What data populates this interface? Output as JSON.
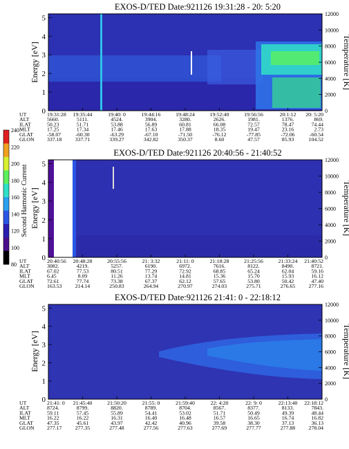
{
  "chart_data": [
    {
      "type": "heatmap",
      "title": "EXOS-D/TED   Date:921126  19:31:28 - 20: 5:20",
      "ylabel": "Energy [eV]",
      "y2label": "Temperature [K]",
      "ylim": [
        0,
        5.2
      ],
      "y2lim": [
        0,
        12000
      ],
      "yticks": [
        "0",
        "1",
        "2",
        "3",
        "4",
        "5"
      ],
      "y2ticks": [
        "0",
        "2000",
        "4000",
        "6000",
        "8000",
        "10000",
        "12000"
      ],
      "xticks": [
        "19:31:28",
        "19:35:44",
        "19:40: 0",
        "19:44:16",
        "19:48:24",
        "19:52:40",
        "19:56:56",
        "20:1:12",
        "20: 5:20"
      ],
      "ephemeris": [
        {
          "label": "UT",
          "values": [
            "19:31:28",
            "19:35:44",
            "19:40: 0",
            "19:44:16",
            "19:48:24",
            "19:52:40",
            "19:56:56",
            "20:1:12",
            "20: 5:20"
          ]
        },
        {
          "label": "ALT",
          "values": [
            "5660.",
            "5111.",
            "4524.",
            "3904.",
            "3280.",
            "2626.",
            "1981.",
            "1376.",
            "869."
          ]
        },
        {
          "label": "ILAT",
          "values": [
            "50.23",
            "51.71",
            "53.88",
            "56.89",
            "60.81",
            "66.08",
            "72.57",
            "78.47",
            "74.44"
          ]
        },
        {
          "label": "MLT",
          "values": [
            "17.25",
            "17.34",
            "17.46",
            "17.63",
            "17.88",
            "18.35",
            "19.47",
            "23.16",
            "2.73"
          ]
        },
        {
          "label": "GLAT",
          "values": [
            "-58.07",
            "-60.30",
            "-63.29",
            "-67.10",
            "-71.50",
            "-76.12",
            "-77.85",
            "-72.06",
            "-60.54"
          ]
        },
        {
          "label": "GLON",
          "values": [
            "337.18",
            "337.71",
            "339.27",
            "342.82",
            "350.37",
            "8.60",
            "47.57",
            "85.93",
            "104.52"
          ]
        }
      ]
    },
    {
      "type": "heatmap",
      "title": "EXOS-D/TED   Date:921126  20:40:56 - 21:40:52",
      "ylabel": "Energy [eV]",
      "y2label": "Temperature [K]",
      "ylim": [
        0,
        5.2
      ],
      "y2lim": [
        0,
        12000
      ],
      "yticks": [
        "0",
        "1",
        "2",
        "3",
        "4",
        "5"
      ],
      "y2ticks": [
        "0",
        "2000",
        "4000",
        "6000",
        "8000",
        "10000",
        "12000"
      ],
      "xticks": [
        "20:40:56",
        "20:48:28",
        "20:55:56",
        "21: 3:32",
        "21:11: 0",
        "21:18:28",
        "21:25:56",
        "21:33:24",
        "21:40:52"
      ],
      "ephemeris": [
        {
          "label": "UT",
          "values": [
            "20:40:56",
            "20:48:28",
            "20:55:56",
            "21: 3:32",
            "21:11: 0",
            "21:18:28",
            "21:25:56",
            "21:33:24",
            "21:40:52"
          ]
        },
        {
          "label": "ALT",
          "values": [
            "3082.",
            "4219.",
            "5257.",
            "6190.",
            "6972.",
            "7616.",
            "8122.",
            "8490.",
            "8721."
          ]
        },
        {
          "label": "ILAT",
          "values": [
            "67.02",
            "77.53",
            "80.51",
            "77.29",
            "72.92",
            "68.85",
            "65.24",
            "62.04",
            "59.16"
          ]
        },
        {
          "label": "MLT",
          "values": [
            "6.45",
            "8.09",
            "11.26",
            "13.74",
            "14.81",
            "15.36",
            "15.70",
            "15.93",
            "16.12"
          ]
        },
        {
          "label": "GLAT",
          "values": [
            "72.61",
            "77.74",
            "73.38",
            "67.37",
            "62.12",
            "57.65",
            "53.80",
            "50.42",
            "47.40"
          ]
        },
        {
          "label": "GLON",
          "values": [
            "163.53",
            "214.14",
            "250.83",
            "264.94",
            "270.97",
            "274.03",
            "275.71",
            "276.65",
            "277.16"
          ]
        }
      ]
    },
    {
      "type": "heatmap",
      "title": "EXOS-D/TED   Date:921126  21:41: 0 - 22:18:12",
      "ylabel": "Energy [eV]",
      "y2label": "Temperature [K]",
      "ylim": [
        0,
        5.2
      ],
      "y2lim": [
        0,
        12000
      ],
      "yticks": [
        "0",
        "1",
        "2",
        "3",
        "4",
        "5"
      ],
      "y2ticks": [
        "0",
        "2000",
        "4000",
        "6000",
        "8000",
        "10000",
        "12000"
      ],
      "xticks": [
        "21:41: 0",
        "21:45:40",
        "21:50:20",
        "21:55: 0",
        "21:59:40",
        "22: 4:20",
        "22: 9: 0",
        "22:13:40",
        "22:18:12"
      ],
      "ephemeris": [
        {
          "label": "UT",
          "values": [
            "21:41: 0",
            "21:45:40",
            "21:50:20",
            "21:55: 0",
            "21:59:40",
            "22: 4:20",
            "22: 9: 0",
            "22:13:40",
            "22:18:12"
          ]
        },
        {
          "label": "ALT",
          "values": [
            "8724.",
            "8799.",
            "8820.",
            "8789.",
            "8704.",
            "8567.",
            "8377.",
            "8133.",
            "7843."
          ]
        },
        {
          "label": "ILAT",
          "values": [
            "59.11",
            "57.45",
            "55.89",
            "54.41",
            "53.02",
            "51.71",
            "50.49",
            "49.39",
            "48.44"
          ]
        },
        {
          "label": "MLT",
          "values": [
            "16.22",
            "16.22",
            "16.31",
            "16.40",
            "16.48",
            "16.57",
            "16.65",
            "16.74",
            "16.82"
          ]
        },
        {
          "label": "GLAT",
          "values": [
            "47.35",
            "45.61",
            "43.97",
            "42.42",
            "40.96",
            "39.58",
            "38.30",
            "37.13",
            "36.13"
          ]
        },
        {
          "label": "GLON",
          "values": [
            "277.17",
            "277.35",
            "277.48",
            "277.56",
            "277.63",
            "277.69",
            "277.77",
            "277.88",
            "278.04"
          ]
        }
      ]
    }
  ],
  "colorbar": {
    "label": "Second Harmonic Current",
    "range": [
      80,
      240
    ],
    "ticks": [
      "80",
      "100",
      "120",
      "140",
      "160",
      "180",
      "200",
      "220",
      "240"
    ],
    "colors": [
      "#000000",
      "#4b0f8c",
      "#2a1fb0",
      "#2a56e6",
      "#2aa0f0",
      "#30e0c8",
      "#5cf05c",
      "#d8f030",
      "#f0a020",
      "#e02020"
    ]
  }
}
